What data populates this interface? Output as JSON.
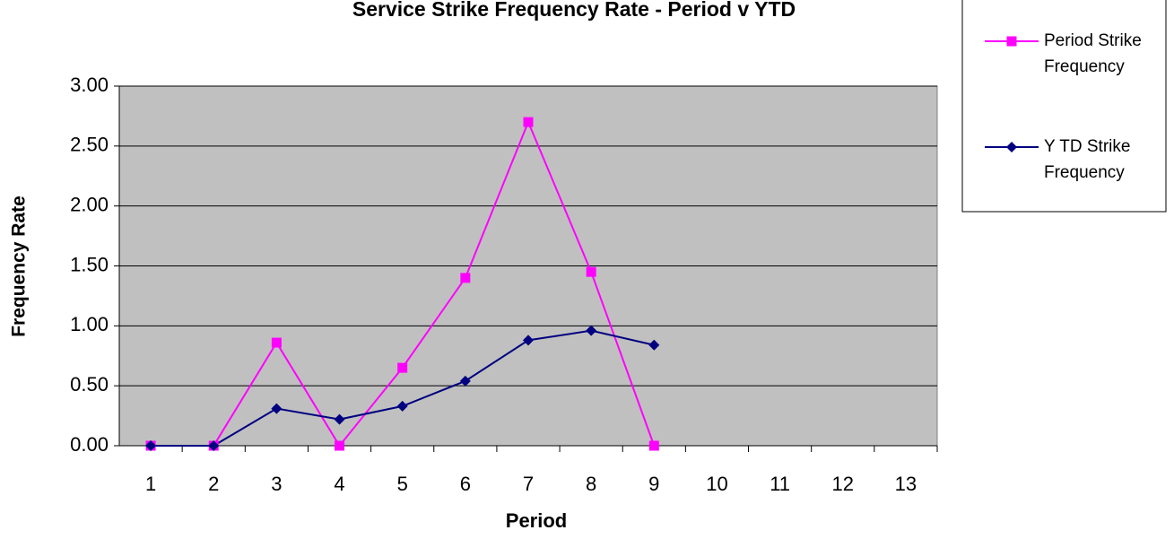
{
  "chart_data": {
    "type": "line",
    "title": "Service Strike Frequency Rate - Period v YTD",
    "x_label": "Period",
    "y_label": "Frequency Rate",
    "categories": [
      "1",
      "2",
      "3",
      "4",
      "5",
      "6",
      "7",
      "8",
      "9",
      "10",
      "11",
      "12",
      "13"
    ],
    "series": [
      {
        "name": "Period Strike Frequency",
        "color": "#ff00ff",
        "marker": "square",
        "values": [
          0,
          0,
          0.86,
          0,
          0.65,
          1.4,
          2.7,
          1.45,
          0,
          null,
          null,
          null,
          null
        ]
      },
      {
        "name": "Y TD Strike Frequency",
        "color": "#000080",
        "marker": "diamond",
        "values": [
          0,
          0,
          0.31,
          0.22,
          0.33,
          0.54,
          0.88,
          0.96,
          0.84,
          null,
          null,
          null,
          null
        ]
      }
    ],
    "ylim": [
      0,
      3
    ],
    "yticks": [
      {
        "value": 0,
        "label": "0.00"
      },
      {
        "value": 0.5,
        "label": "0.50"
      },
      {
        "value": 1,
        "label": "1.00"
      },
      {
        "value": 1.5,
        "label": "1.50"
      },
      {
        "value": 2,
        "label": "2.00"
      },
      {
        "value": 2.5,
        "label": "2.50"
      },
      {
        "value": 3,
        "label": "3.00"
      }
    ],
    "grid": true,
    "legend": "top-right"
  }
}
